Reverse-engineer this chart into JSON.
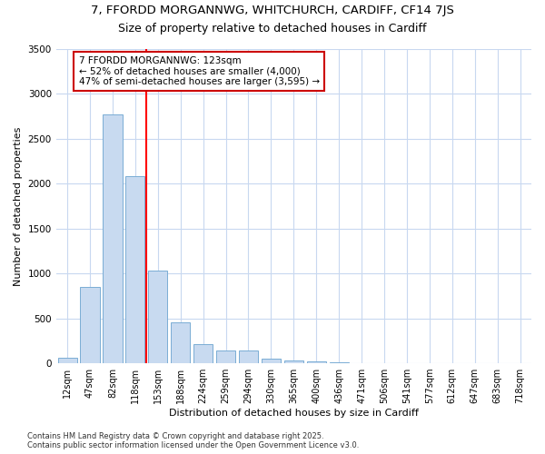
{
  "title_line1": "7, FFORDD MORGANNWG, WHITCHURCH, CARDIFF, CF14 7JS",
  "title_line2": "Size of property relative to detached houses in Cardiff",
  "xlabel": "Distribution of detached houses by size in Cardiff",
  "ylabel": "Number of detached properties",
  "categories": [
    "12sqm",
    "47sqm",
    "82sqm",
    "118sqm",
    "153sqm",
    "188sqm",
    "224sqm",
    "259sqm",
    "294sqm",
    "330sqm",
    "365sqm",
    "400sqm",
    "436sqm",
    "471sqm",
    "506sqm",
    "541sqm",
    "577sqm",
    "612sqm",
    "647sqm",
    "683sqm",
    "718sqm"
  ],
  "values": [
    60,
    850,
    2775,
    2080,
    1035,
    460,
    210,
    145,
    145,
    55,
    30,
    20,
    10,
    5,
    3,
    2,
    1,
    0,
    0,
    0,
    0
  ],
  "bar_color": "#c8daf0",
  "bar_edge_color": "#7aadd4",
  "vline_color": "red",
  "vline_x_index": 3,
  "annotation_text": "7 FFORDD MORGANNWG: 123sqm\n← 52% of detached houses are smaller (4,000)\n47% of semi-detached houses are larger (3,595) →",
  "annotation_box_facecolor": "white",
  "annotation_box_edgecolor": "#cc0000",
  "ylim": [
    0,
    3500
  ],
  "yticks": [
    0,
    500,
    1000,
    1500,
    2000,
    2500,
    3000,
    3500
  ],
  "fig_background": "white",
  "plot_background": "white",
  "grid_color": "#c8d8f0",
  "footer_line1": "Contains HM Land Registry data © Crown copyright and database right 2025.",
  "footer_line2": "Contains public sector information licensed under the Open Government Licence v3.0.",
  "title_fontsize": 9.5,
  "subtitle_fontsize": 9,
  "axis_label_fontsize": 8,
  "tick_fontsize": 7,
  "annotation_fontsize": 7.5,
  "footer_fontsize": 6
}
